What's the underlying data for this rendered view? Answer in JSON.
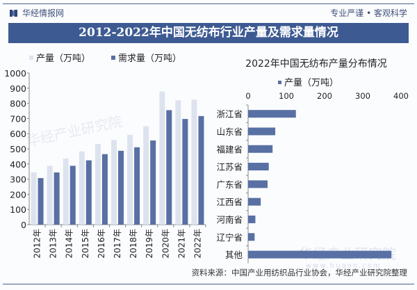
{
  "header": {
    "brand": "华经情报网",
    "slogan": "专业严谨 • 客观科学",
    "title": "2012-2022年中国无纺布行业产量及需求量情况"
  },
  "footer": {
    "source": "资料来源：中国产业用纺织品行业协会，华经产业研究院整理"
  },
  "watermark": {
    "name": "华经产业研究院",
    "url": "www.huaon.com"
  },
  "colors": {
    "production": "#dde3ee",
    "demand": "#5870a3",
    "banner": "#3d5a92"
  },
  "chart_data": [
    {
      "type": "bar",
      "title": "",
      "categories": [
        "2012年",
        "2013年",
        "2014年",
        "2015年",
        "2016年",
        "2017年",
        "2018年",
        "2019年",
        "2020年",
        "2021年",
        "2022年"
      ],
      "series": [
        {
          "name": "产量（万吨）",
          "values": [
            345,
            388,
            436,
            483,
            532,
            558,
            593,
            649,
            878,
            820,
            824
          ]
        },
        {
          "name": "需求量（万吨）",
          "values": [
            307,
            344,
            388,
            424,
            465,
            487,
            510,
            555,
            755,
            697,
            716
          ]
        }
      ],
      "ylim": [
        0,
        1000
      ],
      "yticks": [
        0,
        100,
        200,
        300,
        400,
        500,
        600,
        700,
        800,
        900,
        1000
      ],
      "legend": "top",
      "grid": false
    },
    {
      "type": "bar",
      "orientation": "horizontal",
      "title": "2022年中国无纺布产量分布情况",
      "categories": [
        "浙江省",
        "山东省",
        "福建省",
        "江苏省",
        "广东省",
        "江西省",
        "河南省",
        "辽宁省",
        "其他"
      ],
      "series": [
        {
          "name": "产量（万吨）",
          "values": [
            125,
            71,
            64,
            54,
            51,
            33,
            19,
            17,
            375
          ]
        }
      ],
      "xlim": [
        0,
        400
      ],
      "xticks": [
        0,
        100,
        200,
        300,
        400
      ],
      "legend": "top",
      "grid": false
    }
  ]
}
